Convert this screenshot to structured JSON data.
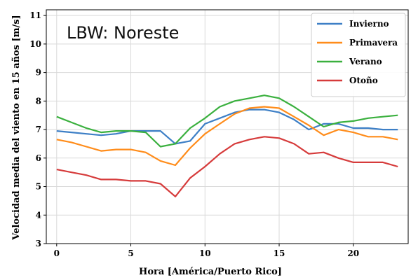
{
  "chart_data": {
    "type": "line",
    "title": "LBW: Noreste",
    "xlabel": "Hora [América/Puerto Rico]",
    "ylabel": "Velocidad media del viento en 15 años [m/s]",
    "xlim": [
      -0.7,
      23.7
    ],
    "ylim": [
      3,
      11.2
    ],
    "x_ticks": [
      0,
      5,
      10,
      15,
      20
    ],
    "y_ticks": [
      3,
      4,
      5,
      6,
      7,
      8,
      9,
      10,
      11
    ],
    "grid": true,
    "legend_position": "top-right",
    "x": [
      0,
      1,
      2,
      3,
      4,
      5,
      6,
      7,
      8,
      9,
      10,
      11,
      12,
      13,
      14,
      15,
      16,
      17,
      18,
      19,
      20,
      21,
      22,
      23
    ],
    "series": [
      {
        "name": "Invierno",
        "color": "#3d7fc6",
        "values": [
          6.95,
          6.9,
          6.85,
          6.8,
          6.85,
          6.95,
          6.95,
          6.95,
          6.5,
          6.6,
          7.2,
          7.4,
          7.6,
          7.7,
          7.7,
          7.6,
          7.35,
          7.0,
          7.2,
          7.2,
          7.05,
          7.05,
          7.0,
          7.0
        ]
      },
      {
        "name": "Primavera",
        "color": "#ff8c1a",
        "values": [
          6.65,
          6.55,
          6.4,
          6.25,
          6.3,
          6.3,
          6.2,
          5.9,
          5.75,
          6.35,
          6.85,
          7.2,
          7.55,
          7.75,
          7.8,
          7.75,
          7.45,
          7.15,
          6.8,
          7.0,
          6.9,
          6.75,
          6.75,
          6.65
        ]
      },
      {
        "name": "Verano",
        "color": "#3ab03e",
        "values": [
          7.45,
          7.25,
          7.05,
          6.9,
          6.95,
          6.95,
          6.9,
          6.4,
          6.5,
          7.05,
          7.4,
          7.8,
          8.0,
          8.1,
          8.2,
          8.1,
          7.8,
          7.45,
          7.1,
          7.25,
          7.3,
          7.4,
          7.45,
          7.5
        ]
      },
      {
        "name": "Otoño",
        "color": "#d63b3b",
        "values": [
          5.6,
          5.5,
          5.4,
          5.25,
          5.25,
          5.2,
          5.2,
          5.1,
          4.65,
          5.3,
          5.7,
          6.15,
          6.5,
          6.65,
          6.75,
          6.7,
          6.5,
          6.15,
          6.2,
          6.0,
          5.85,
          5.85,
          5.85,
          5.7
        ]
      }
    ]
  }
}
